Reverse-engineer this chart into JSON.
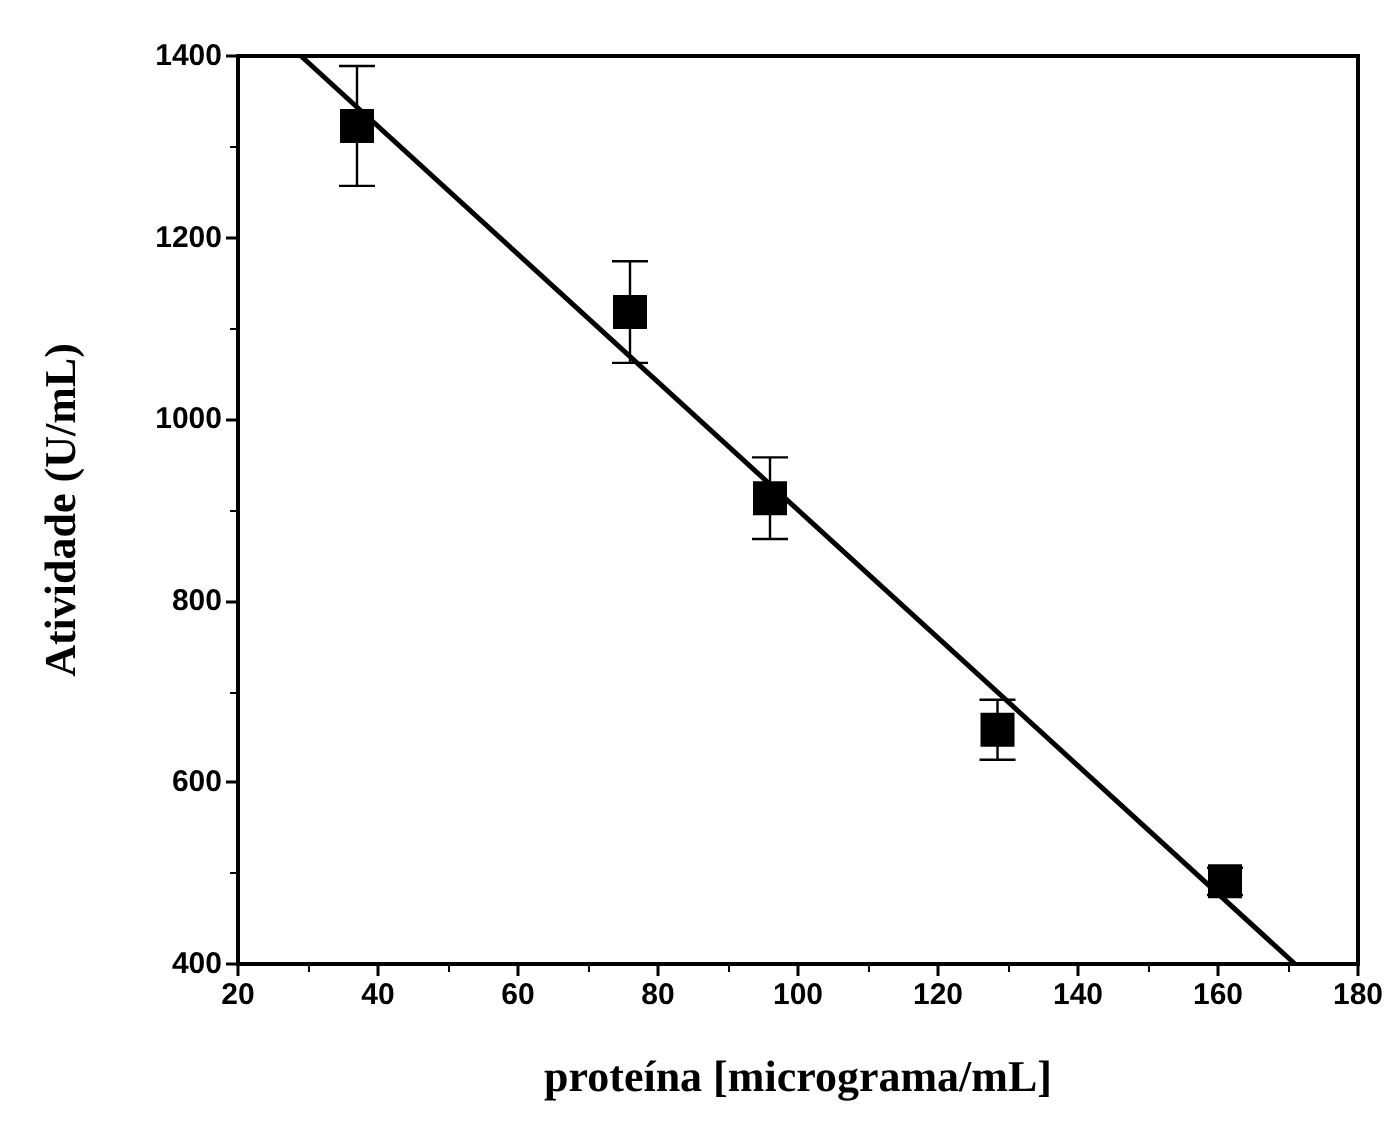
{
  "chart_data": {
    "type": "scatter",
    "xlabel": "proteína [micrograma/mL]",
    "ylabel": "Atividade (U/mL)",
    "xlim": [
      20,
      180
    ],
    "xticks": [
      20,
      40,
      60,
      80,
      100,
      120,
      140,
      160,
      180
    ],
    "ylim": [
      400,
      1400
    ],
    "yticks": [
      400,
      600,
      800,
      1000,
      1200,
      1400
    ],
    "grid": false,
    "series": [
      {
        "color": "#000000",
        "marker": "square",
        "x": [
          37,
          76,
          96,
          128.5,
          161
        ],
        "values": [
          1323,
          1118,
          913,
          658,
          491
        ],
        "errors": [
          66,
          56,
          45,
          33,
          15
        ]
      },
      {
        "type": "line",
        "color": "#000000",
        "marker": "none",
        "line_style": "solid",
        "x": [
          29,
          171
        ],
        "values": [
          1400,
          400
        ]
      }
    ]
  }
}
